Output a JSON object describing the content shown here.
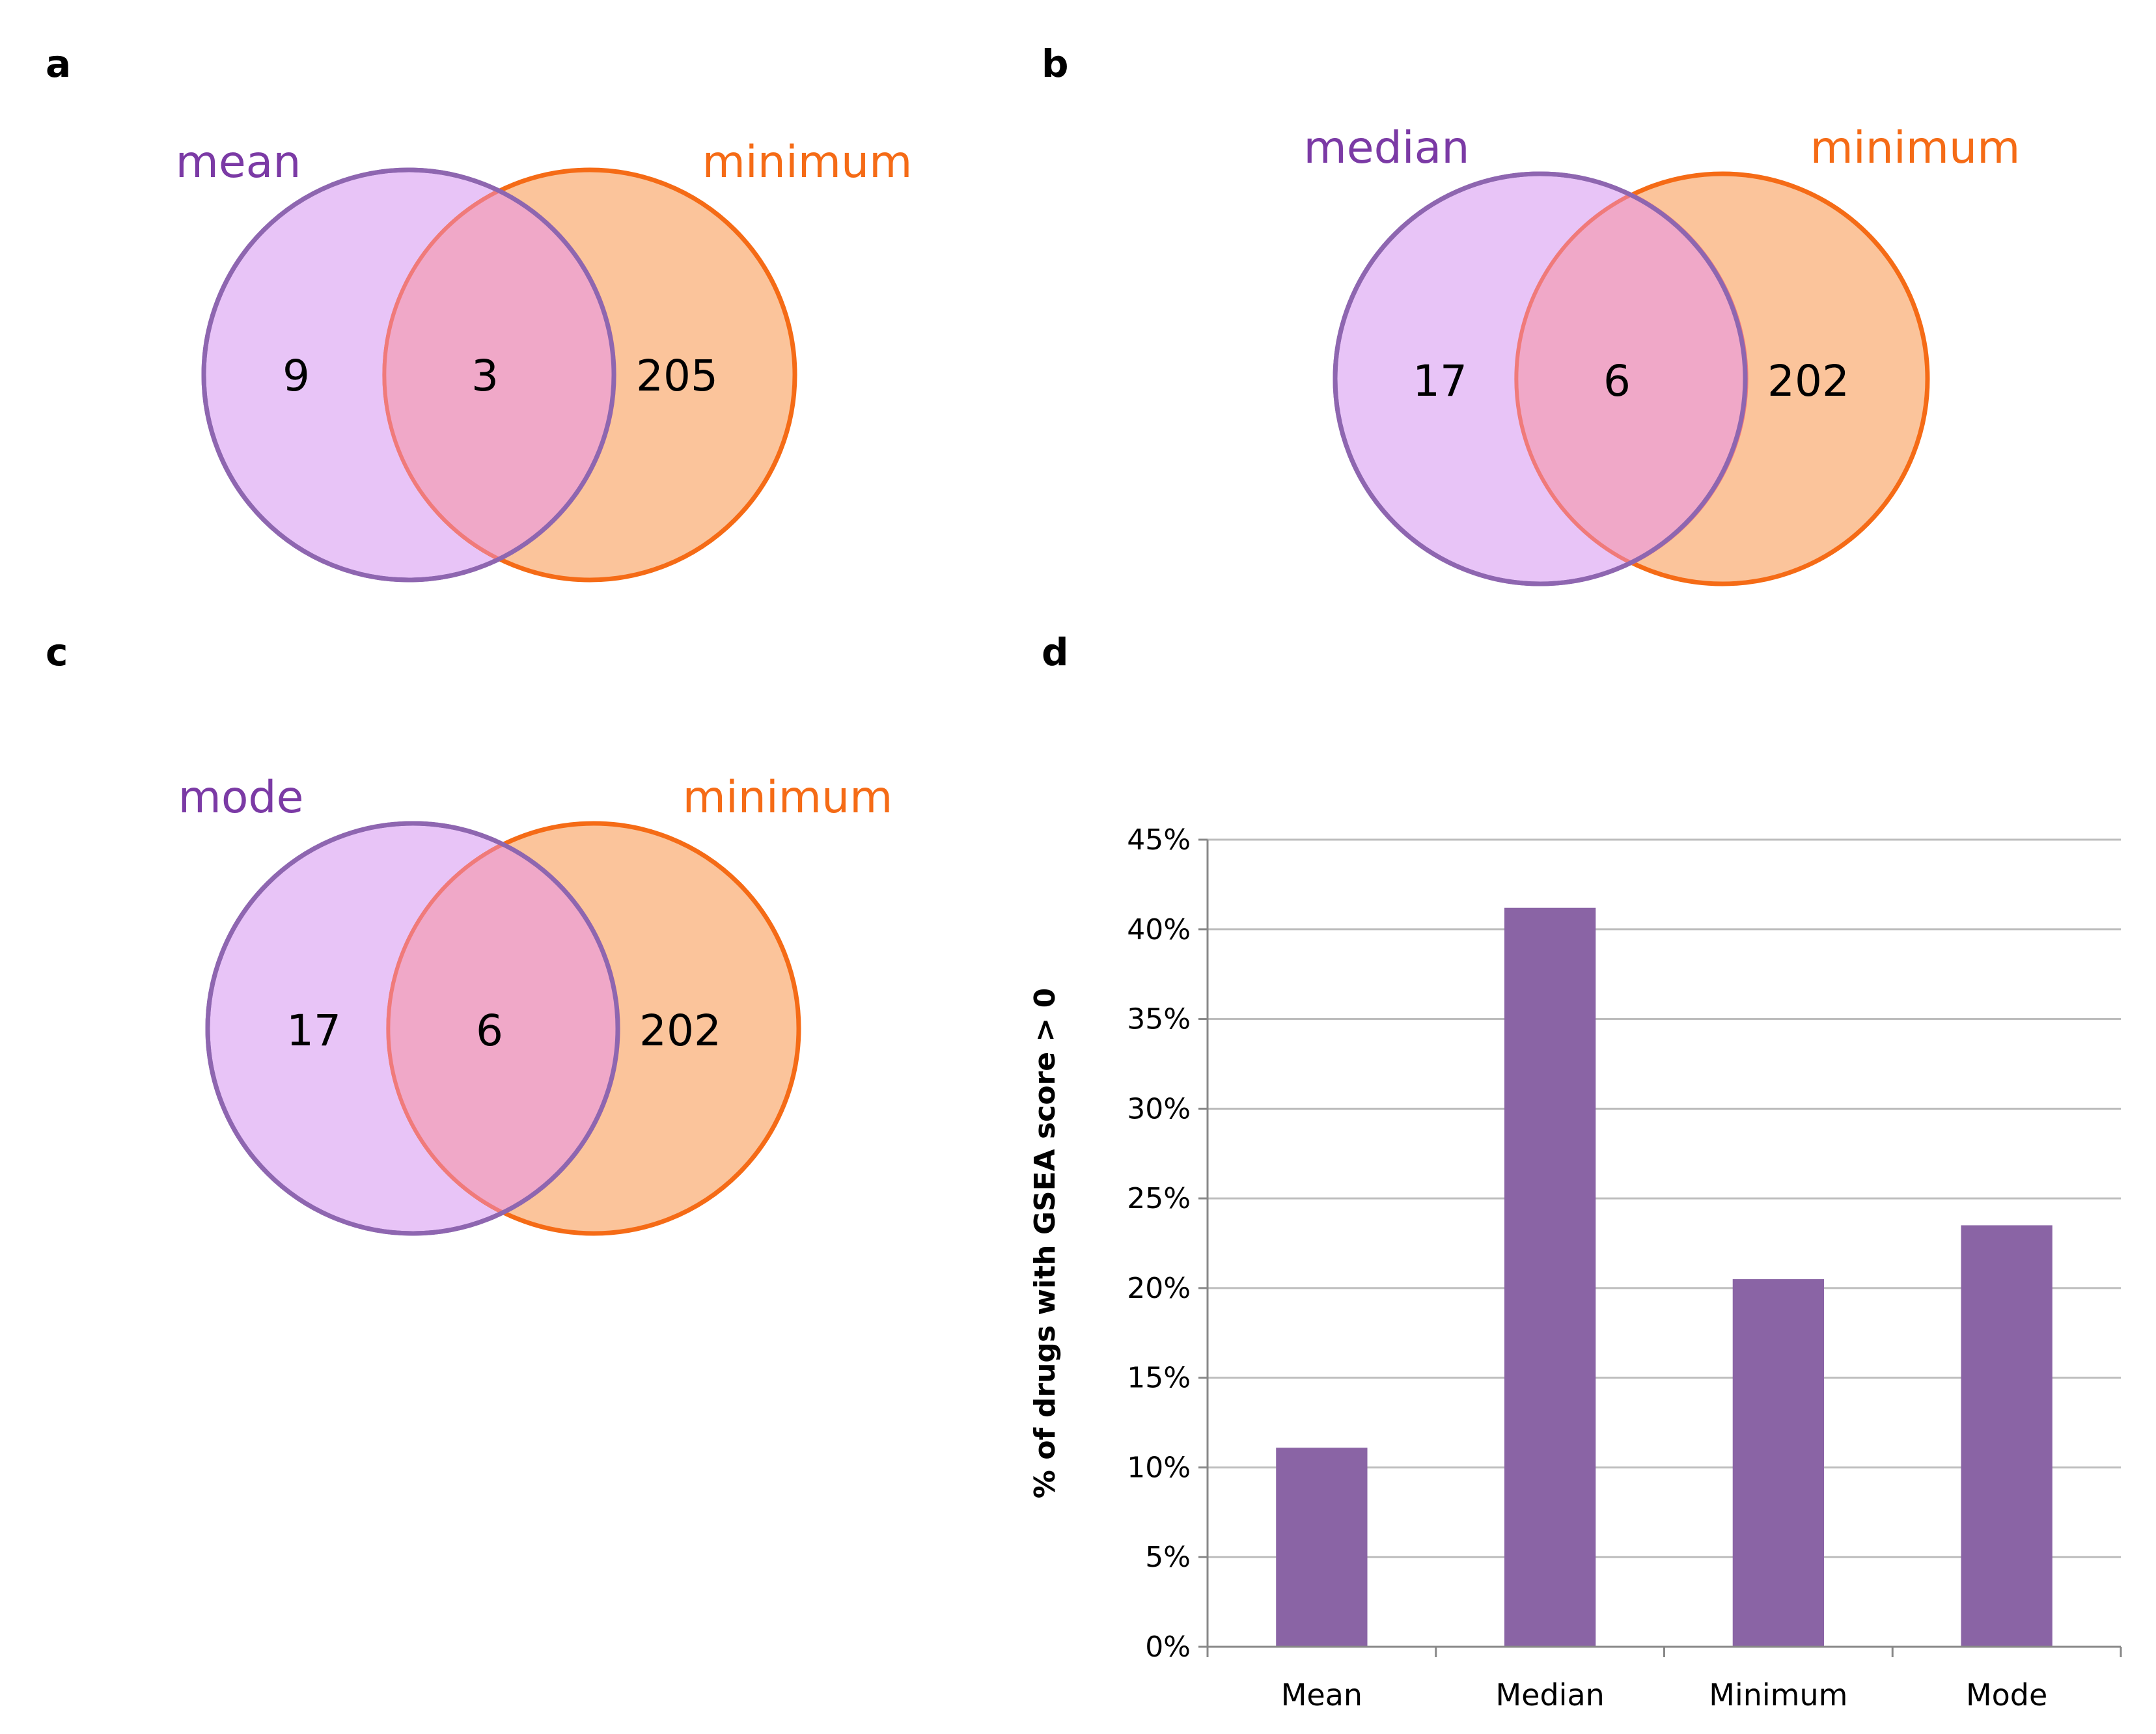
{
  "colors": {
    "left_fill": "#e8c4f7",
    "left_stroke": "#8e66b0",
    "left_label": "#7b3aa5",
    "right_fill": "#fbc49b",
    "right_stroke": "#f56b16",
    "right_label": "#f56b16",
    "overlap_fill": "#f0a8c8",
    "bar": "#8a64a5",
    "grid": "#bdbdbd",
    "axis": "#888888"
  },
  "panels": {
    "a": {
      "letter": "a",
      "left_label": "mean",
      "right_label": "minimum",
      "left_only": "9",
      "overlap": "3",
      "right_only": "205"
    },
    "b": {
      "letter": "b",
      "left_label": "median",
      "right_label": "minimum",
      "left_only": "17",
      "overlap": "6",
      "right_only": "202"
    },
    "c": {
      "letter": "c",
      "left_label": "mode",
      "right_label": "minimum",
      "left_only": "17",
      "overlap": "6",
      "right_only": "202"
    },
    "d": {
      "letter": "d"
    }
  },
  "chart_data": {
    "type": "bar",
    "title": "",
    "xlabel": "",
    "ylabel": "% of drugs with GSEA score > 0",
    "categories": [
      "Mean",
      "Median",
      "Minimum",
      "Mode"
    ],
    "values": [
      11.1,
      41.2,
      20.5,
      23.5
    ],
    "ylim": [
      0,
      45
    ],
    "yticks": [
      0,
      5,
      10,
      15,
      20,
      25,
      30,
      35,
      40,
      45
    ],
    "ytick_labels": [
      "0%",
      "5%",
      "10%",
      "15%",
      "20%",
      "25%",
      "30%",
      "35%",
      "40%",
      "45%"
    ],
    "grid": true,
    "legend": "none"
  }
}
